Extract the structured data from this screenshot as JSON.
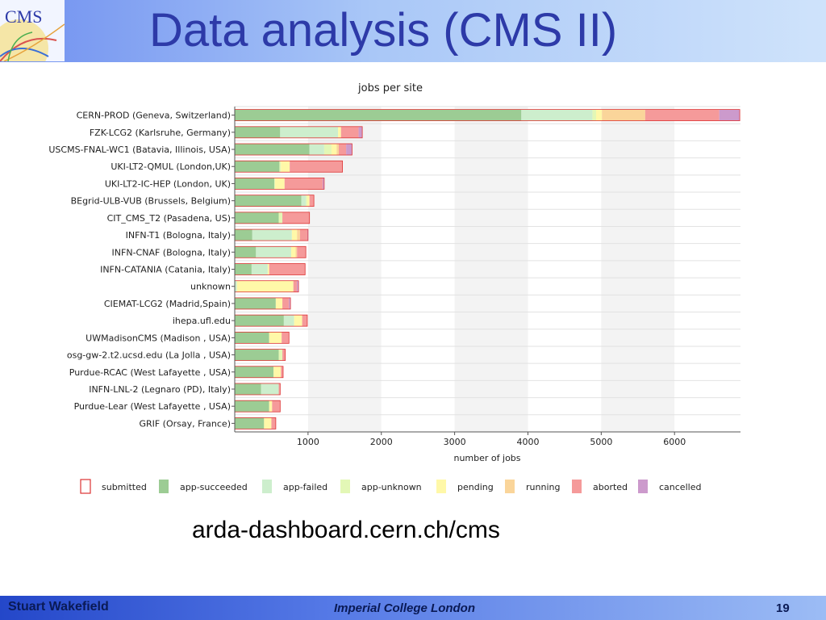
{
  "slide": {
    "title": "Data analysis (CMS II)",
    "logo_text": "CMS",
    "url": "arda-dashboard.cern.ch/cms"
  },
  "footer": {
    "author": "Stuart Wakefield",
    "organization": "Imperial College London",
    "page_number": "19"
  },
  "chart_data": {
    "type": "bar",
    "orientation": "horizontal",
    "stacked": true,
    "title": "jobs per site",
    "xlabel": "number of jobs",
    "ylabel": "",
    "xlim": [
      0,
      6900
    ],
    "xticks": [
      1000,
      2000,
      3000,
      4000,
      5000,
      6000
    ],
    "grid": true,
    "legend_position": "bottom",
    "categories": [
      "CERN-PROD (Geneva, Switzerland)",
      "FZK-LCG2 (Karlsruhe, Germany)",
      "USCMS-FNAL-WC1 (Batavia, Illinois, USA)",
      "UKI-LT2-QMUL (London,UK)",
      "UKI-LT2-IC-HEP (London, UK)",
      "BEgrid-ULB-VUB (Brussels, Belgium)",
      "CIT_CMS_T2 (Pasadena, US)",
      "INFN-T1 (Bologna, Italy)",
      "INFN-CNAF (Bologna, Italy)",
      "INFN-CATANIA (Catania, Italy)",
      "unknown",
      "CIEMAT-LCG2 (Madrid,Spain)",
      "ihepa.ufl.edu",
      "UWMadisonCMS (Madison , USA)",
      "osg-gw-2.t2.ucsd.edu (La Jolla , USA)",
      "Purdue-RCAC (West Lafayette , USA)",
      "INFN-LNL-2 (Legnaro (PD), Italy)",
      "Purdue-Lear (West Lafayette , USA)",
      "GRIF (Orsay, France)"
    ],
    "series": [
      {
        "name": "submitted",
        "color": "#ffffff",
        "values": [
          0,
          0,
          0,
          0,
          0,
          0,
          0,
          0,
          0,
          0,
          0,
          0,
          0,
          0,
          0,
          0,
          0,
          0,
          0
        ]
      },
      {
        "name": "app-succeeded",
        "color": "#9ccc94",
        "values": [
          3910,
          620,
          1020,
          610,
          540,
          910,
          600,
          240,
          290,
          230,
          0,
          560,
          670,
          470,
          600,
          530,
          360,
          470,
          400
        ]
      },
      {
        "name": "app-failed",
        "color": "#cdeecd",
        "values": [
          970,
          790,
          200,
          0,
          0,
          60,
          0,
          540,
          480,
          220,
          30,
          0,
          140,
          0,
          0,
          0,
          240,
          0,
          0
        ]
      },
      {
        "name": "app-unknown",
        "color": "#e3f7b6",
        "values": [
          50,
          0,
          100,
          20,
          10,
          20,
          50,
          0,
          0,
          0,
          0,
          0,
          0,
          0,
          50,
          0,
          0,
          0,
          0
        ]
      },
      {
        "name": "pending",
        "color": "#fff8a8",
        "values": [
          80,
          40,
          70,
          120,
          130,
          30,
          0,
          70,
          60,
          20,
          770,
          90,
          110,
          170,
          0,
          100,
          0,
          40,
          100
        ]
      },
      {
        "name": "running",
        "color": "#fad59a",
        "values": [
          590,
          0,
          30,
          0,
          0,
          0,
          0,
          40,
          20,
          0,
          0,
          0,
          0,
          0,
          0,
          0,
          0,
          0,
          0
        ]
      },
      {
        "name": "aborted",
        "color": "#f59a9a",
        "values": [
          1010,
          240,
          100,
          720,
          520,
          60,
          370,
          100,
          120,
          490,
          50,
          90,
          70,
          100,
          40,
          30,
          20,
          110,
          60
        ]
      },
      {
        "name": "cancelled",
        "color": "#cc9acc",
        "values": [
          280,
          50,
          80,
          0,
          20,
          0,
          0,
          10,
          0,
          0,
          20,
          20,
          0,
          0,
          0,
          0,
          0,
          0,
          0
        ]
      }
    ]
  }
}
